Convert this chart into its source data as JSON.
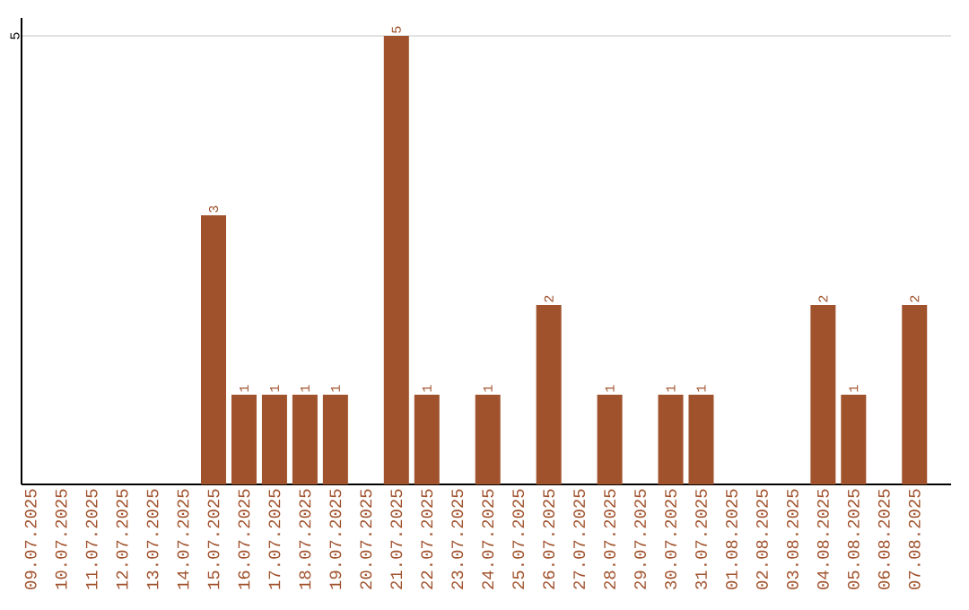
{
  "chart_data": {
    "type": "bar",
    "categories": [
      "09.07.2025",
      "10.07.2025",
      "11.07.2025",
      "12.07.2025",
      "13.07.2025",
      "14.07.2025",
      "15.07.2025",
      "16.07.2025",
      "17.07.2025",
      "18.07.2025",
      "19.07.2025",
      "20.07.2025",
      "21.07.2025",
      "22.07.2025",
      "23.07.2025",
      "24.07.2025",
      "25.07.2025",
      "26.07.2025",
      "27.07.2025",
      "28.07.2025",
      "29.07.2025",
      "30.07.2025",
      "31.07.2025",
      "01.08.2025",
      "02.08.2025",
      "03.08.2025",
      "04.08.2025",
      "05.08.2025",
      "06.08.2025",
      "07.08.2025"
    ],
    "values": [
      0,
      0,
      0,
      0,
      0,
      0,
      3,
      1,
      1,
      1,
      1,
      0,
      5,
      1,
      0,
      1,
      0,
      2,
      0,
      1,
      0,
      1,
      1,
      0,
      0,
      0,
      2,
      1,
      0,
      2
    ],
    "value_labels": [
      null,
      null,
      null,
      null,
      null,
      null,
      "3",
      "1",
      "1",
      "1",
      "1",
      null,
      "5",
      "1",
      null,
      "1",
      null,
      "2",
      null,
      "1",
      null,
      "1",
      "1",
      null,
      null,
      null,
      "2",
      "1",
      null,
      "2"
    ],
    "color": "#a0522d",
    "ylim": [
      0,
      5.2
    ],
    "yticks": [
      5
    ],
    "grid": "y"
  }
}
